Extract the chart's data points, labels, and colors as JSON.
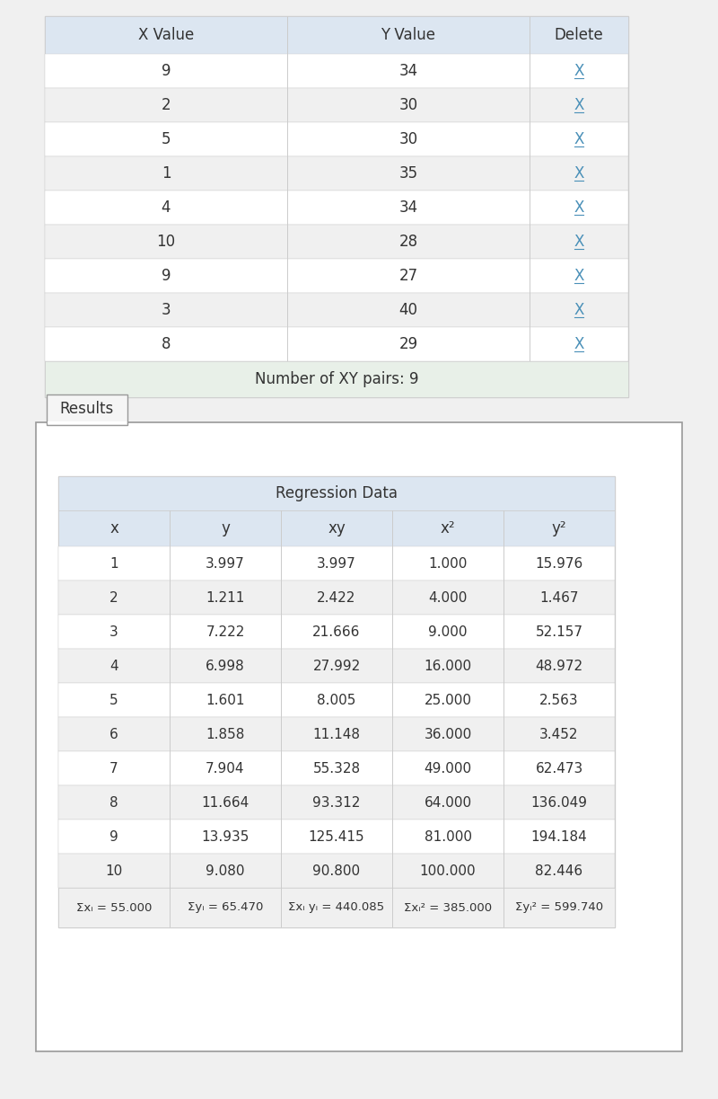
{
  "bg_color": "#f0f0f0",
  "white": "#ffffff",
  "table1_header_bg": "#dce6f1",
  "table1_row_odd": "#ffffff",
  "table1_row_even": "#f0f0f0",
  "table1_footer_bg": "#e8f0e8",
  "table2_header_bg": "#dce6f1",
  "table2_row_odd": "#ffffff",
  "table2_row_even": "#f0f0f0",
  "border_color": "#cccccc",
  "text_color": "#333333",
  "link_color": "#4a90b8",
  "results_box_bg": "#f5f5f5",
  "results_box_border": "#999999",
  "table1_headers": [
    "X Value",
    "Y Value",
    "Delete"
  ],
  "table1_data": [
    [
      9,
      34
    ],
    [
      2,
      30
    ],
    [
      5,
      30
    ],
    [
      1,
      35
    ],
    [
      4,
      34
    ],
    [
      10,
      28
    ],
    [
      9,
      27
    ],
    [
      3,
      40
    ],
    [
      8,
      29
    ]
  ],
  "table1_footer": "Number of XY pairs: 9",
  "table2_title": "Regression Data",
  "table2_headers": [
    "x",
    "y",
    "xy",
    "x²",
    "y²"
  ],
  "table2_data": [
    [
      1,
      3.997,
      3.997,
      1.0,
      15.976
    ],
    [
      2,
      1.211,
      2.422,
      4.0,
      1.467
    ],
    [
      3,
      7.222,
      21.666,
      9.0,
      52.157
    ],
    [
      4,
      6.998,
      27.992,
      16.0,
      48.972
    ],
    [
      5,
      1.601,
      8.005,
      25.0,
      2.563
    ],
    [
      6,
      1.858,
      11.148,
      36.0,
      3.452
    ],
    [
      7,
      7.904,
      55.328,
      49.0,
      62.473
    ],
    [
      8,
      11.664,
      93.312,
      64.0,
      136.049
    ],
    [
      9,
      13.935,
      125.415,
      81.0,
      194.184
    ],
    [
      10,
      9.08,
      90.8,
      100.0,
      82.446
    ]
  ],
  "table2_footer": [
    "Σxᵢ = 55.000",
    "Σyᵢ = 65.470",
    "Σxᵢ yᵢ = 440.085",
    "Σxᵢ² = 385.000",
    "Σyᵢ² = 599.740"
  ]
}
